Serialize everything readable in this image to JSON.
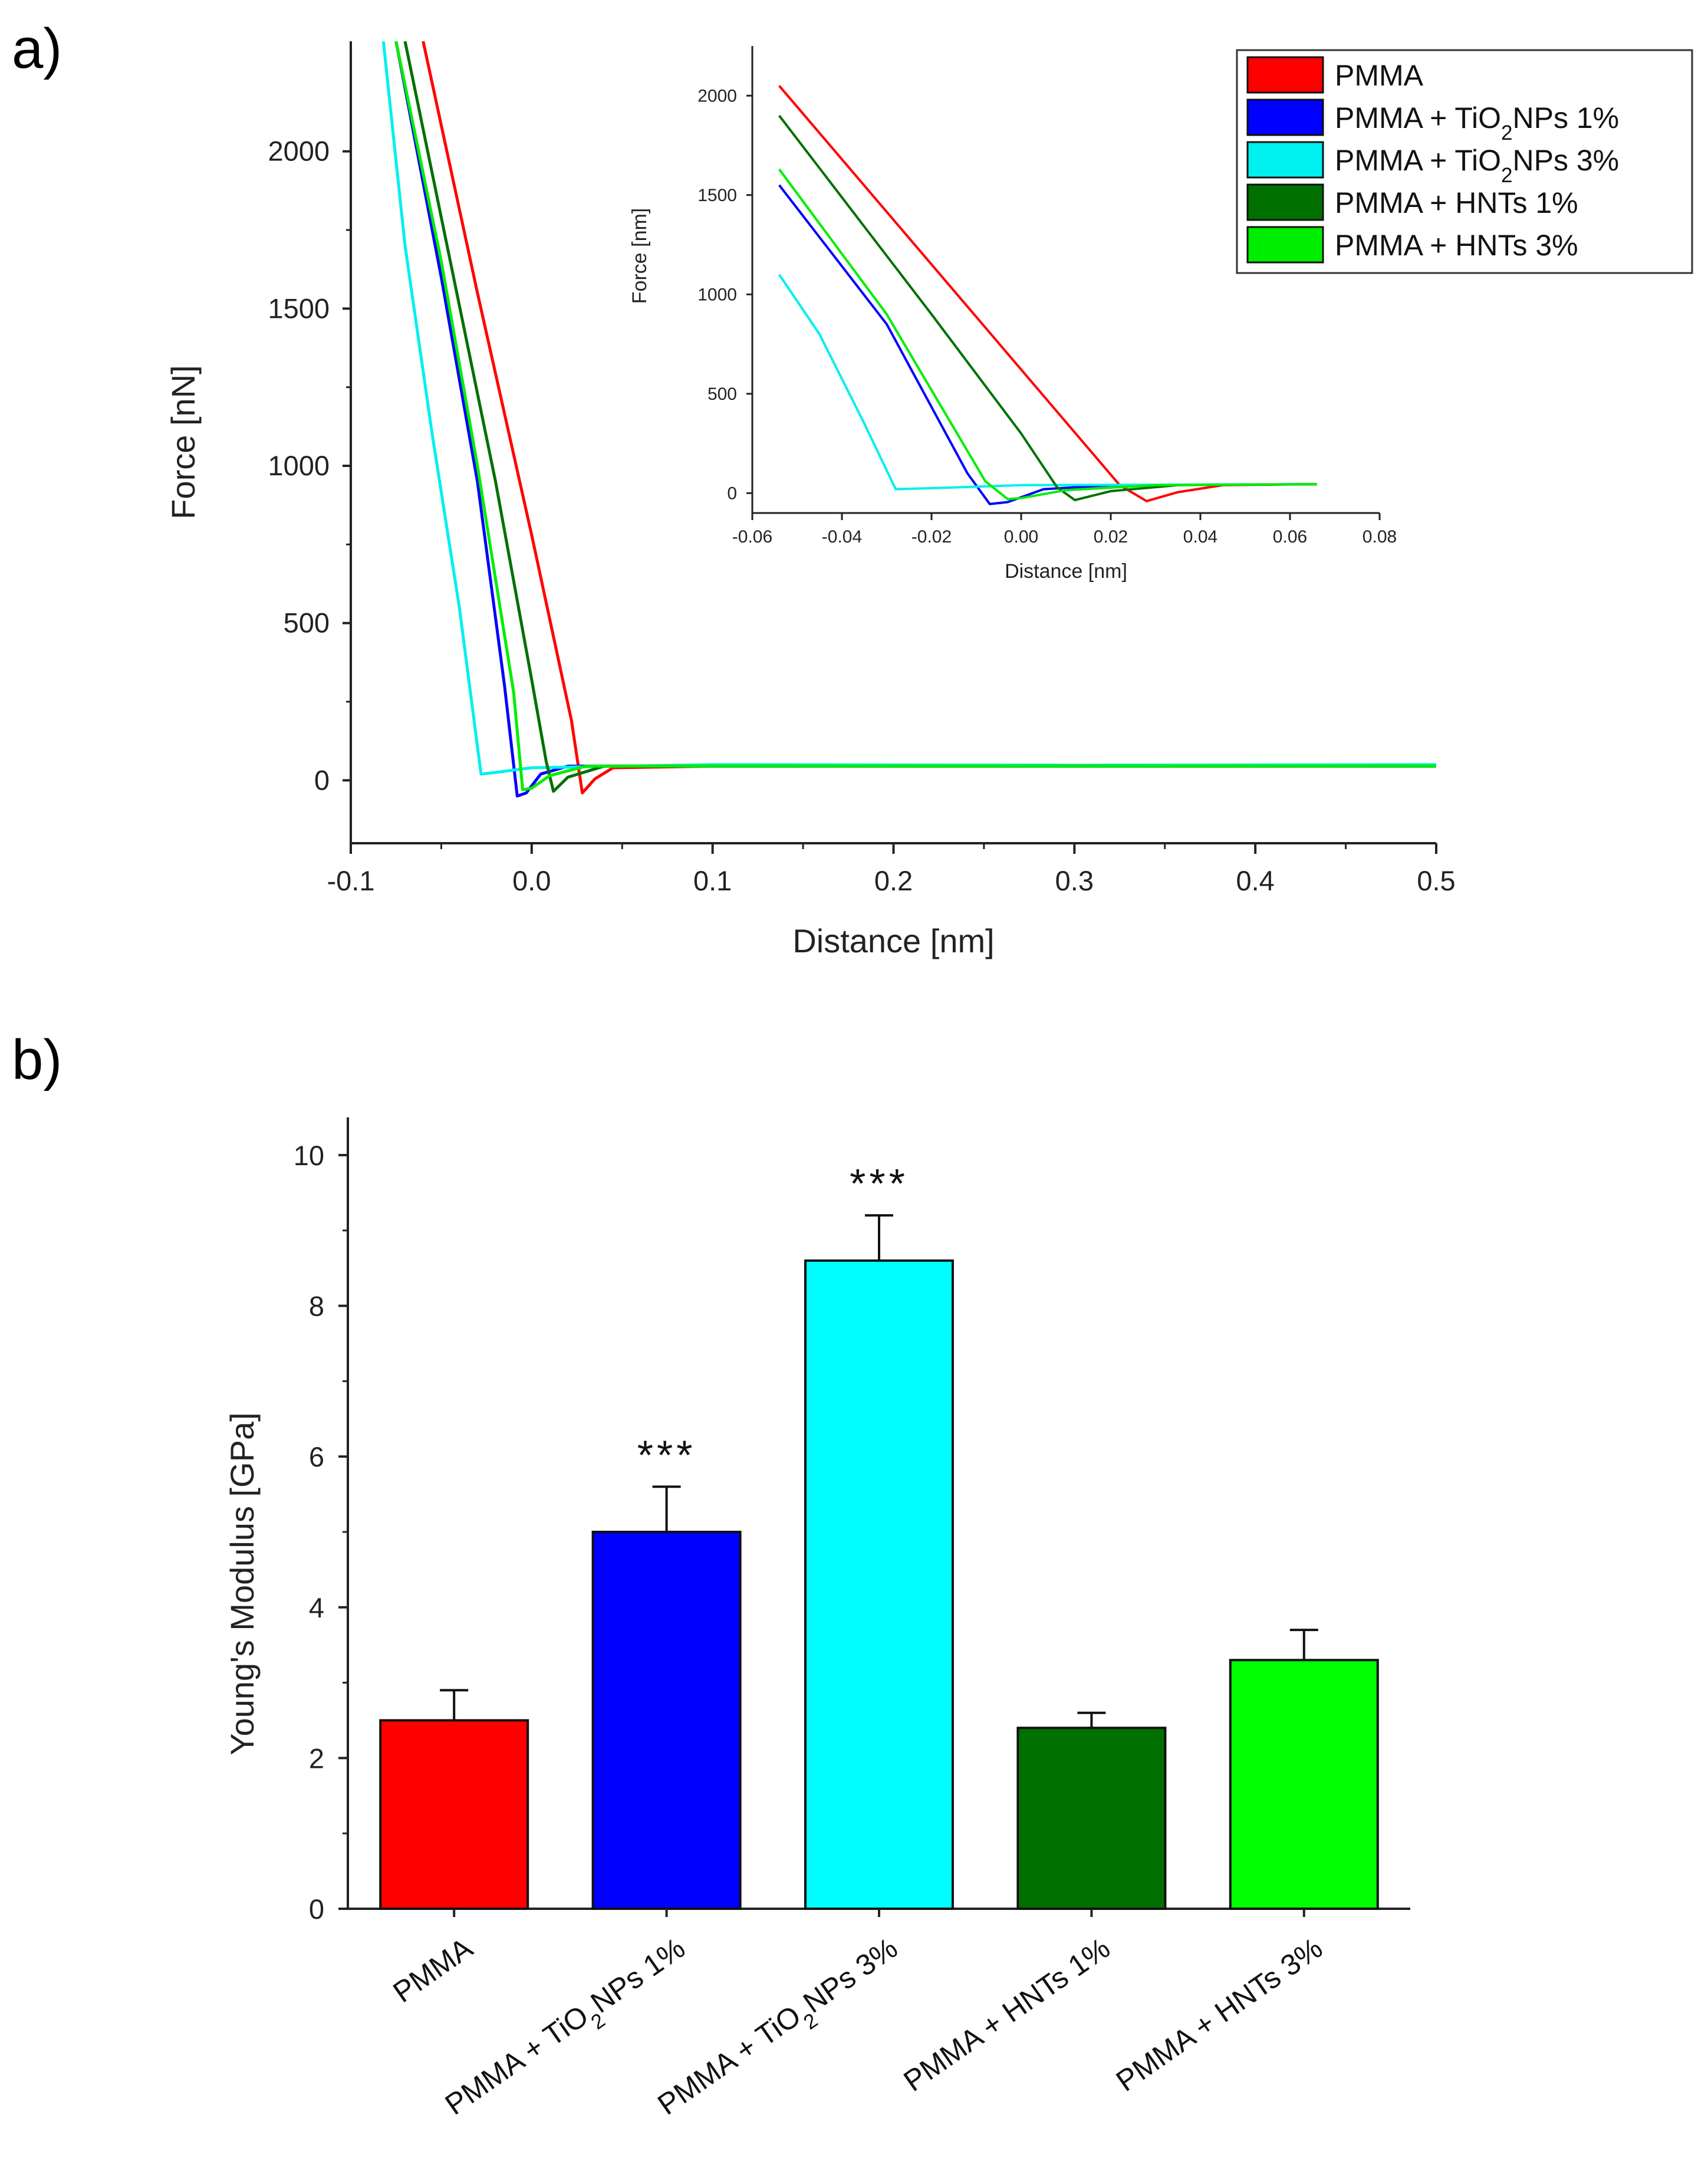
{
  "panel_labels": [
    "a)",
    "b)"
  ],
  "chart_data": [
    {
      "id": "force-distance",
      "type": "line",
      "xlabel": "Distance [nm]",
      "ylabel": "Force [nN]",
      "xlim": [
        -0.1,
        0.5
      ],
      "ylim": [
        -200,
        2350
      ],
      "xticks": [
        "-0.1",
        "0.0",
        "0.1",
        "0.2",
        "0.3",
        "0.4",
        "0.5"
      ],
      "xtick_values": [
        -0.1,
        0.0,
        0.1,
        0.2,
        0.3,
        0.4,
        0.5
      ],
      "yticks": [
        "0",
        "500",
        "1000",
        "1500",
        "2000"
      ],
      "ytick_values": [
        0,
        500,
        1000,
        1500,
        2000
      ],
      "legend_position": "top-right",
      "series": [
        {
          "name": "PMMA",
          "color": "#ff0000",
          "x": [
            -0.06,
            -0.03,
            0.0,
            0.022,
            0.028,
            0.035,
            0.045,
            0.1,
            0.2,
            0.3,
            0.4,
            0.5
          ],
          "y": [
            2350,
            1550,
            780,
            190,
            -40,
            5,
            40,
            45,
            45,
            45,
            45,
            45
          ]
        },
        {
          "name": "PMMA + TiO2NPs 1%",
          "color": "#0000ff",
          "x": [
            -0.075,
            -0.05,
            -0.03,
            -0.015,
            -0.008,
            -0.003,
            0.005,
            0.02,
            0.1,
            0.3,
            0.5
          ],
          "y": [
            2350,
            1600,
            950,
            300,
            -50,
            -40,
            20,
            45,
            45,
            45,
            45
          ]
        },
        {
          "name": "PMMA + TiO2NPs 3%",
          "color": "#00f0f0",
          "x": [
            -0.082,
            -0.07,
            -0.055,
            -0.04,
            -0.028,
            -0.02,
            0.0,
            0.1,
            0.3,
            0.5
          ],
          "y": [
            2350,
            1700,
            1100,
            550,
            20,
            25,
            40,
            50,
            48,
            50
          ]
        },
        {
          "name": "PMMA + HNTs 1%",
          "color": "#007000",
          "x": [
            -0.07,
            -0.045,
            -0.02,
            0.0,
            0.008,
            0.012,
            0.02,
            0.04,
            0.1,
            0.3,
            0.5
          ],
          "y": [
            2350,
            1650,
            950,
            320,
            60,
            -35,
            10,
            45,
            45,
            45,
            45
          ]
        },
        {
          "name": "PMMA + HNTs 3%",
          "color": "#00ee00",
          "x": [
            -0.075,
            -0.05,
            -0.03,
            -0.01,
            -0.005,
            0.0,
            0.01,
            0.03,
            0.1,
            0.3,
            0.5
          ],
          "y": [
            2350,
            1650,
            1000,
            280,
            -30,
            -25,
            15,
            45,
            45,
            45,
            45
          ]
        }
      ],
      "inset": {
        "xlabel": "Distance [nm]",
        "ylabel": "Force [nm]",
        "xlim": [
          -0.06,
          0.08
        ],
        "ylim": [
          -100,
          2250
        ],
        "xticks": [
          "-0.06",
          "-0.04",
          "-0.02",
          "0.00",
          "0.02",
          "0.04",
          "0.06",
          "0.08"
        ],
        "xtick_values": [
          -0.06,
          -0.04,
          -0.02,
          0.0,
          0.02,
          0.04,
          0.06,
          0.08
        ],
        "yticks": [
          "0",
          "500",
          "1000",
          "1500",
          "2000"
        ],
        "ytick_values": [
          0,
          500,
          1000,
          1500,
          2000
        ],
        "series": [
          {
            "name": "PMMA",
            "color": "#ff0000",
            "x": [
              -0.054,
              0.022,
              0.028,
              0.035,
              0.045,
              0.066
            ],
            "y": [
              2050,
              40,
              -40,
              5,
              40,
              45
            ]
          },
          {
            "name": "PMMA + TiO2NPs 1%",
            "color": "#0000ff",
            "x": [
              -0.054,
              -0.03,
              -0.012,
              -0.007,
              -0.003,
              0.005,
              0.02,
              0.066
            ],
            "y": [
              1550,
              850,
              100,
              -55,
              -45,
              20,
              40,
              45
            ]
          },
          {
            "name": "PMMA + TiO2NPs 3%",
            "color": "#00f0f0",
            "x": [
              -0.054,
              -0.045,
              -0.035,
              -0.028,
              -0.02,
              0.0,
              0.066
            ],
            "y": [
              1100,
              800,
              350,
              20,
              25,
              40,
              45
            ]
          },
          {
            "name": "PMMA + HNTs 1%",
            "color": "#007000",
            "x": [
              -0.054,
              -0.02,
              0.0,
              0.008,
              0.012,
              0.02,
              0.035,
              0.066
            ],
            "y": [
              1900,
              900,
              300,
              30,
              -35,
              10,
              40,
              45
            ]
          },
          {
            "name": "PMMA + HNTs 3%",
            "color": "#00ee00",
            "x": [
              -0.054,
              -0.03,
              -0.008,
              -0.003,
              0.0,
              0.01,
              0.03,
              0.066
            ],
            "y": [
              1630,
              900,
              60,
              -30,
              -25,
              15,
              40,
              45
            ]
          }
        ]
      }
    },
    {
      "id": "youngs-modulus",
      "type": "bar",
      "ylabel": "Young's Modulus [GPa]",
      "xlabel": "",
      "ylim": [
        0,
        10.5
      ],
      "yticks": [
        "0",
        "2",
        "4",
        "6",
        "8",
        "10"
      ],
      "ytick_values": [
        0,
        2,
        4,
        6,
        8,
        10
      ],
      "categories": [
        "PMMA",
        "PMMA + TiO2NPs 1%",
        "PMMA + TiO2NPs 3%",
        "PMMA + HNTs 1%",
        "PMMA + HNTs 3%"
      ],
      "values": [
        2.5,
        5.0,
        8.6,
        2.4,
        3.3
      ],
      "errors": [
        0.4,
        0.6,
        0.6,
        0.2,
        0.4
      ],
      "significance": [
        "",
        "***",
        "***",
        "",
        ""
      ],
      "colors": [
        "#ff0000",
        "#0000ff",
        "#00ffff",
        "#007000",
        "#00ff00"
      ]
    }
  ]
}
